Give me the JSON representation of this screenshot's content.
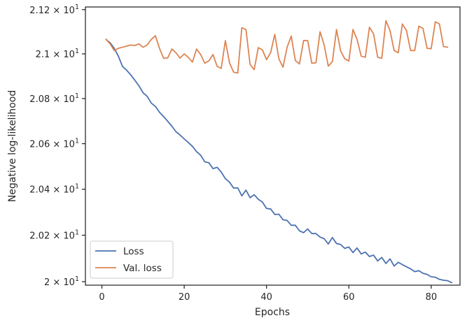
{
  "chart_data": {
    "type": "line",
    "xlabel": "Epochs",
    "ylabel": "Negative log-likelihood",
    "xlim": [
      -4,
      87
    ],
    "ylim": [
      19.985,
      21.212
    ],
    "y_scale": "log",
    "grid": false,
    "legend_placement": "lower-left",
    "x_ticks": [
      {
        "value": 0,
        "label": "0"
      },
      {
        "value": 20,
        "label": "20"
      },
      {
        "value": 40,
        "label": "40"
      },
      {
        "value": 60,
        "label": "60"
      },
      {
        "value": 80,
        "label": "80"
      }
    ],
    "y_ticks": [
      {
        "value": 20.0,
        "mantissa": "2",
        "exponent": "1"
      },
      {
        "value": 20.2,
        "mantissa": "2.02",
        "exponent": "1"
      },
      {
        "value": 20.4,
        "mantissa": "2.04",
        "exponent": "1"
      },
      {
        "value": 20.6,
        "mantissa": "2.06",
        "exponent": "1"
      },
      {
        "value": 20.8,
        "mantissa": "2.08",
        "exponent": "1"
      },
      {
        "value": 21.0,
        "mantissa": "2.1",
        "exponent": "1"
      },
      {
        "value": 21.2,
        "mantissa": "2.12",
        "exponent": "1"
      }
    ],
    "tick_times": "× 10",
    "series": [
      {
        "name": "Loss",
        "color": "#4c72b0",
        "values": [
          [
            1,
            21.065
          ],
          [
            2,
            21.05
          ],
          [
            3,
            21.025
          ],
          [
            4,
            20.99
          ],
          [
            5,
            20.944
          ],
          [
            6,
            20.927
          ],
          [
            7,
            20.906
          ],
          [
            8,
            20.882
          ],
          [
            9,
            20.857
          ],
          [
            10,
            20.826
          ],
          [
            11,
            20.81
          ],
          [
            12,
            20.78
          ],
          [
            13,
            20.765
          ],
          [
            14,
            20.739
          ],
          [
            15,
            20.72
          ],
          [
            16,
            20.699
          ],
          [
            17,
            20.677
          ],
          [
            18,
            20.653
          ],
          [
            19,
            20.638
          ],
          [
            20,
            20.621
          ],
          [
            21,
            20.605
          ],
          [
            22,
            20.588
          ],
          [
            23,
            20.565
          ],
          [
            24,
            20.549
          ],
          [
            25,
            20.52
          ],
          [
            26,
            20.516
          ],
          [
            27,
            20.49
          ],
          [
            28,
            20.496
          ],
          [
            29,
            20.475
          ],
          [
            30,
            20.446
          ],
          [
            31,
            20.431
          ],
          [
            32,
            20.405
          ],
          [
            33,
            20.406
          ],
          [
            34,
            20.371
          ],
          [
            35,
            20.396
          ],
          [
            36,
            20.363
          ],
          [
            37,
            20.376
          ],
          [
            38,
            20.356
          ],
          [
            39,
            20.344
          ],
          [
            40,
            20.316
          ],
          [
            41,
            20.314
          ],
          [
            42,
            20.29
          ],
          [
            43,
            20.291
          ],
          [
            44,
            20.267
          ],
          [
            45,
            20.264
          ],
          [
            46,
            20.243
          ],
          [
            47,
            20.243
          ],
          [
            48,
            20.219
          ],
          [
            49,
            20.211
          ],
          [
            50,
            20.227
          ],
          [
            51,
            20.207
          ],
          [
            52,
            20.207
          ],
          [
            53,
            20.192
          ],
          [
            54,
            20.185
          ],
          [
            55,
            20.162
          ],
          [
            56,
            20.19
          ],
          [
            57,
            20.164
          ],
          [
            58,
            20.16
          ],
          [
            59,
            20.143
          ],
          [
            60,
            20.149
          ],
          [
            61,
            20.125
          ],
          [
            62,
            20.145
          ],
          [
            63,
            20.119
          ],
          [
            64,
            20.127
          ],
          [
            65,
            20.108
          ],
          [
            66,
            20.114
          ],
          [
            67,
            20.089
          ],
          [
            68,
            20.104
          ],
          [
            69,
            20.078
          ],
          [
            70,
            20.098
          ],
          [
            71,
            20.067
          ],
          [
            72,
            20.083
          ],
          [
            73,
            20.073
          ],
          [
            74,
            20.064
          ],
          [
            75,
            20.055
          ],
          [
            76,
            20.043
          ],
          [
            77,
            20.047
          ],
          [
            78,
            20.036
          ],
          [
            79,
            20.031
          ],
          [
            80,
            20.021
          ],
          [
            81,
            20.019
          ],
          [
            82,
            20.01
          ],
          [
            83,
            20.006
          ],
          [
            84,
            20.004
          ],
          [
            85,
            19.996
          ]
        ]
      },
      {
        "name": "Val. loss",
        "color": "#dd8452",
        "values": [
          [
            1,
            21.066
          ],
          [
            2,
            21.045
          ],
          [
            3,
            21.015
          ],
          [
            4,
            21.025
          ],
          [
            5,
            21.03
          ],
          [
            6,
            21.035
          ],
          [
            7,
            21.04
          ],
          [
            8,
            21.038
          ],
          [
            9,
            21.045
          ],
          [
            10,
            21.03
          ],
          [
            11,
            21.04
          ],
          [
            12,
            21.065
          ],
          [
            13,
            21.082
          ],
          [
            14,
            21.025
          ],
          [
            15,
            20.98
          ],
          [
            16,
            20.982
          ],
          [
            17,
            21.022
          ],
          [
            18,
            21.005
          ],
          [
            19,
            20.981
          ],
          [
            20,
            21.0
          ],
          [
            21,
            20.984
          ],
          [
            22,
            20.963
          ],
          [
            23,
            21.022
          ],
          [
            24,
            20.997
          ],
          [
            25,
            20.958
          ],
          [
            26,
            20.969
          ],
          [
            27,
            20.997
          ],
          [
            28,
            20.944
          ],
          [
            29,
            20.935
          ],
          [
            30,
            21.06
          ],
          [
            31,
            20.96
          ],
          [
            32,
            20.918
          ],
          [
            33,
            20.914
          ],
          [
            34,
            21.118
          ],
          [
            35,
            21.11
          ],
          [
            36,
            20.953
          ],
          [
            37,
            20.929
          ],
          [
            38,
            21.028
          ],
          [
            39,
            21.018
          ],
          [
            40,
            20.974
          ],
          [
            41,
            21.006
          ],
          [
            42,
            21.088
          ],
          [
            43,
            20.978
          ],
          [
            44,
            20.94
          ],
          [
            45,
            21.03
          ],
          [
            46,
            21.08
          ],
          [
            47,
            20.97
          ],
          [
            48,
            20.955
          ],
          [
            49,
            21.06
          ],
          [
            50,
            21.06
          ],
          [
            51,
            20.958
          ],
          [
            52,
            20.96
          ],
          [
            53,
            21.1
          ],
          [
            54,
            21.04
          ],
          [
            55,
            20.945
          ],
          [
            56,
            20.965
          ],
          [
            57,
            21.11
          ],
          [
            58,
            21.013
          ],
          [
            59,
            20.978
          ],
          [
            60,
            20.968
          ],
          [
            61,
            21.11
          ],
          [
            62,
            21.065
          ],
          [
            63,
            20.99
          ],
          [
            64,
            20.985
          ],
          [
            65,
            21.12
          ],
          [
            66,
            21.09
          ],
          [
            67,
            20.985
          ],
          [
            68,
            20.98
          ],
          [
            69,
            21.15
          ],
          [
            70,
            21.105
          ],
          [
            71,
            21.015
          ],
          [
            72,
            21.005
          ],
          [
            73,
            21.135
          ],
          [
            74,
            21.105
          ],
          [
            75,
            21.015
          ],
          [
            76,
            21.015
          ],
          [
            77,
            21.125
          ],
          [
            78,
            21.115
          ],
          [
            79,
            21.025
          ],
          [
            80,
            21.023
          ],
          [
            81,
            21.145
          ],
          [
            82,
            21.135
          ],
          [
            83,
            21.033
          ],
          [
            84,
            21.03
          ]
        ]
      }
    ]
  }
}
